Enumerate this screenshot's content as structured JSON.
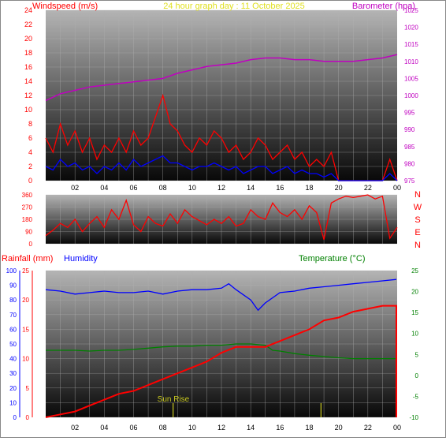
{
  "colors": {
    "wind_gust": "#ff0000",
    "wind_avg": "#0000ff",
    "barometer": "#c000c0",
    "direction": "#ff0000",
    "rainfall": "#ff0000",
    "humidity": "#0000ff",
    "temperature": "#008000",
    "sunrise": "#c8c820",
    "title": "#e0e020",
    "grid": "#b0b0b0"
  },
  "chart_data": [
    {
      "type": "line",
      "title": "24 hour graph day : 11 October 2025",
      "left_axis_label": "Windspeed (m/s)",
      "right_axis_label": "Barometer (hpa)",
      "x_ticks": [
        "02",
        "04",
        "06",
        "08",
        "10",
        "12",
        "14",
        "16",
        "18",
        "20",
        "22",
        "00"
      ],
      "left_ticks": [
        "0",
        "2",
        "4",
        "6",
        "8",
        "10",
        "12",
        "14",
        "16",
        "18",
        "20",
        "22",
        "24"
      ],
      "right_ticks": [
        "975",
        "980",
        "985",
        "990",
        "995",
        "1000",
        "1005",
        "1010",
        "1015",
        "1020",
        "1025"
      ],
      "ylim_left": [
        0,
        24
      ],
      "ylim_right": [
        975,
        1025
      ],
      "xlim_hours": [
        0,
        24
      ],
      "series": [
        {
          "id": "barometer",
          "axis": "right",
          "x": [
            0,
            1,
            2,
            3,
            4,
            5,
            6,
            7,
            8,
            9,
            10,
            11,
            12,
            13,
            14,
            15,
            16,
            17,
            18,
            19,
            20,
            21,
            22,
            23,
            24
          ],
          "y": [
            998.5,
            1000.5,
            1001.5,
            1002.5,
            1003,
            1003.5,
            1004,
            1004.5,
            1005,
            1006.5,
            1007.5,
            1008.5,
            1009,
            1009.5,
            1010.5,
            1011,
            1011,
            1010.5,
            1010.5,
            1010,
            1010,
            1010,
            1010.5,
            1011,
            1012
          ]
        },
        {
          "id": "wind-gust",
          "axis": "left",
          "x": [
            0,
            0.5,
            1,
            1.5,
            2,
            2.5,
            3,
            3.5,
            4,
            4.5,
            5,
            5.5,
            6,
            6.5,
            7,
            7.5,
            8,
            8.5,
            9,
            9.5,
            10,
            10.5,
            11,
            11.5,
            12,
            12.5,
            13,
            13.5,
            14,
            14.5,
            15,
            15.5,
            16,
            16.5,
            17,
            17.5,
            18,
            18.5,
            19,
            19.5,
            20,
            21,
            22,
            23,
            23.5,
            24
          ],
          "y": [
            6,
            4,
            8,
            5,
            7,
            4,
            6,
            3,
            5,
            4,
            6,
            4,
            7,
            5,
            6,
            9,
            12,
            8,
            7,
            5,
            4,
            6,
            5,
            7,
            6,
            4,
            5,
            3,
            4,
            6,
            5,
            3,
            4,
            5,
            3,
            4,
            2,
            3,
            2,
            4,
            0,
            0,
            0,
            0,
            3,
            0
          ]
        },
        {
          "id": "wind-avg",
          "axis": "left",
          "x": [
            0,
            0.5,
            1,
            1.5,
            2,
            2.5,
            3,
            3.5,
            4,
            4.5,
            5,
            5.5,
            6,
            6.5,
            7,
            7.5,
            8,
            8.5,
            9,
            9.5,
            10,
            10.5,
            11,
            11.5,
            12,
            12.5,
            13,
            13.5,
            14,
            14.5,
            15,
            15.5,
            16,
            16.5,
            17,
            17.5,
            18,
            18.5,
            19,
            19.5,
            20,
            21,
            22,
            23,
            23.5,
            24
          ],
          "y": [
            2,
            1.5,
            3,
            2,
            2.5,
            1.5,
            2,
            1,
            2,
            1.5,
            2.5,
            1.5,
            3,
            2,
            2.5,
            3,
            3.5,
            2.5,
            2.5,
            2,
            1.5,
            2,
            2,
            2.5,
            2,
            1.5,
            2,
            1,
            1.5,
            2,
            2,
            1,
            1.5,
            2,
            1,
            1.5,
            1,
            1,
            0.5,
            1,
            0,
            0,
            0,
            0,
            1,
            0
          ]
        }
      ]
    },
    {
      "type": "line",
      "ylabel_right": [
        "N",
        "W",
        "S",
        "E",
        "N"
      ],
      "left_ticks": [
        "0",
        "90",
        "180",
        "270",
        "360"
      ],
      "ylim": [
        0,
        360
      ],
      "xlim_hours": [
        0,
        24
      ],
      "series": [
        {
          "id": "wind-direction",
          "x": [
            0,
            0.5,
            1,
            1.5,
            2,
            2.5,
            3,
            3.5,
            4,
            4.5,
            5,
            5.5,
            6,
            6.5,
            7,
            7.5,
            8,
            8.5,
            9,
            9.5,
            10,
            10.5,
            11,
            11.5,
            12,
            12.5,
            13,
            13.5,
            14,
            14.5,
            15,
            15.5,
            16,
            16.5,
            17,
            17.5,
            18,
            18.5,
            19,
            19.5,
            20,
            20.5,
            21,
            21.5,
            22,
            22.5,
            23,
            23.5,
            24
          ],
          "y": [
            60,
            100,
            150,
            120,
            180,
            90,
            150,
            200,
            120,
            250,
            180,
            320,
            140,
            90,
            200,
            150,
            130,
            220,
            150,
            250,
            200,
            170,
            140,
            180,
            150,
            200,
            130,
            150,
            250,
            200,
            180,
            300,
            230,
            200,
            250,
            180,
            280,
            230,
            30,
            300,
            330,
            350,
            340,
            350,
            360,
            330,
            350,
            40,
            120
          ]
        }
      ]
    },
    {
      "type": "line",
      "left_axis_label_1": "Rainfall (mm)",
      "left_axis_label_2": "Humidity",
      "right_axis_label": "Temperature (°C)",
      "annotation": "Sun Rise",
      "sunrise_hour": 8.7,
      "sunset_hour": 18.8,
      "x_ticks": [
        "02",
        "04",
        "06",
        "08",
        "10",
        "12",
        "14",
        "16",
        "18",
        "20",
        "22",
        "00"
      ],
      "rain_ticks": [
        "0",
        "5",
        "10",
        "15",
        "20",
        "25"
      ],
      "humidity_ticks": [
        "0",
        "10",
        "20",
        "30",
        "40",
        "50",
        "60",
        "70",
        "80",
        "90",
        "100"
      ],
      "temp_ticks": [
        "-10",
        "-5",
        "0",
        "5",
        "10",
        "15",
        "20",
        "25"
      ],
      "ylim_rain": [
        0,
        25
      ],
      "ylim_humidity": [
        0,
        100
      ],
      "ylim_temp": [
        -10,
        25
      ],
      "xlim_hours": [
        0,
        24
      ],
      "series": [
        {
          "id": "humidity",
          "axis": "humidity",
          "x": [
            0,
            1,
            2,
            3,
            4,
            5,
            6,
            7,
            8,
            9,
            10,
            11,
            12,
            12.5,
            13,
            14,
            14.5,
            15,
            16,
            17,
            18,
            19,
            20,
            21,
            22,
            23,
            24
          ],
          "y": [
            87,
            86,
            84,
            85,
            86,
            85,
            85,
            86,
            84,
            86,
            87,
            87,
            88,
            91,
            87,
            80,
            73,
            78,
            85,
            86,
            88,
            89,
            90,
            91,
            92,
            93,
            94
          ]
        },
        {
          "id": "temperature",
          "axis": "temp",
          "x": [
            0,
            1,
            2,
            3,
            4,
            5,
            6,
            7,
            8,
            9,
            10,
            11,
            12,
            13,
            14,
            15,
            15.5,
            16,
            17,
            18,
            19,
            20,
            21,
            22,
            23,
            24
          ],
          "y": [
            6,
            6,
            6,
            5.8,
            6,
            6,
            6.2,
            6.5,
            6.8,
            7,
            7,
            7.2,
            7.2,
            7.5,
            7.5,
            7.2,
            6,
            5.8,
            5.2,
            4.8,
            4.5,
            4.2,
            4,
            4,
            4,
            4
          ]
        },
        {
          "id": "rainfall",
          "axis": "rain",
          "x": [
            0,
            1,
            2,
            3,
            4,
            5,
            6,
            7,
            8,
            9,
            10,
            11,
            12,
            13,
            14,
            15,
            16,
            17,
            18,
            19,
            20,
            21,
            22,
            23,
            24,
            24.01
          ],
          "y": [
            0,
            0.5,
            1,
            2,
            3,
            4,
            4.5,
            5.5,
            6.5,
            7.5,
            8.5,
            9.5,
            11,
            12,
            12,
            12,
            13,
            14,
            15,
            16.5,
            17,
            18,
            18.5,
            19,
            19,
            0
          ]
        }
      ]
    }
  ]
}
